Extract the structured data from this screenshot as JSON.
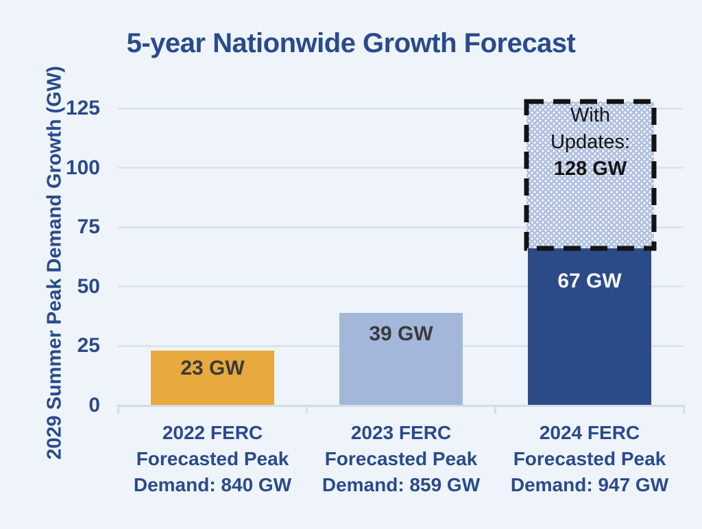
{
  "chart_data": {
    "type": "bar",
    "title": "5-year Nationwide Growth Forecast",
    "ylabel": "2029 Summer Peak Demand Growth (GW)",
    "xlabel": "",
    "ylim": [
      0,
      130
    ],
    "yticks": [
      0,
      25,
      50,
      75,
      100,
      125
    ],
    "grid": "horizontal",
    "legend_position": "none",
    "categories": [
      "2022 FERC\nForecasted Peak\nDemand: 840 GW",
      "2023 FERC\nForecasted Peak\nDemand: 859 GW",
      "2024 FERC\nForecasted Peak\nDemand: 947 GW"
    ],
    "values": [
      23,
      39,
      67
    ],
    "bar_labels": [
      "23 GW",
      "39 GW",
      "67 GW"
    ],
    "bar_colors": [
      "#E8A93E",
      "#A3B7DB",
      "#2B4A88"
    ],
    "bar_label_colors": [
      "#3A3A3A",
      "#3A3A3A",
      "#FAFAFA"
    ],
    "annotation": {
      "target_category_index": 2,
      "from_value": 67,
      "to_value": 128,
      "text_lines": [
        "With",
        "Updates:"
      ],
      "value_label": "128 GW",
      "style": "dashed-border-dotted-fill",
      "fill_color": "#B2C1E1",
      "dot_color": "#FFFFFF",
      "border_color": "#131313",
      "text_color": "#141414"
    },
    "colors": {
      "background": "#EEF4FA",
      "axis_text": "#2A4A8C",
      "gridline": "#DDE3F0",
      "axis_line": "#D5DCE9"
    }
  }
}
